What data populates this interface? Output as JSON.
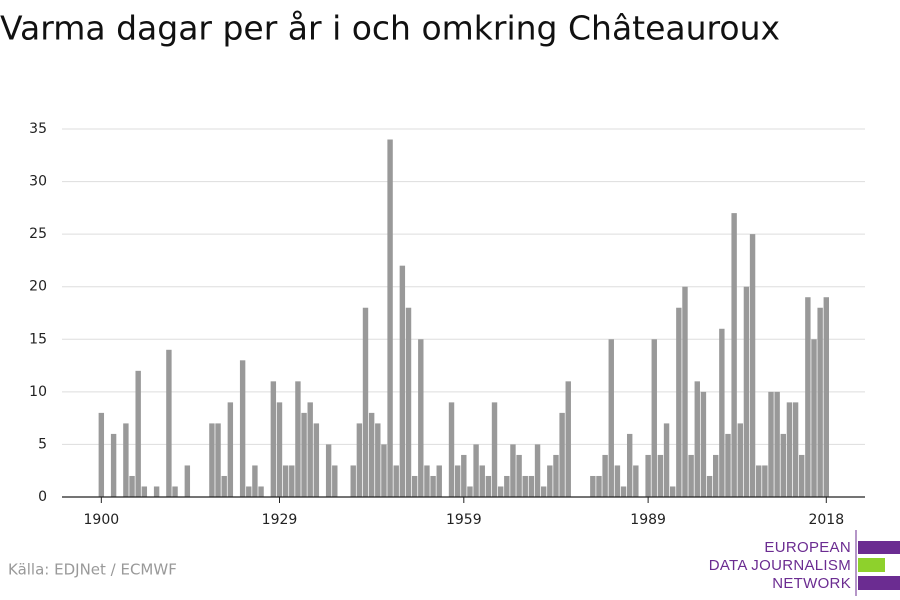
{
  "chart_data": {
    "type": "bar",
    "title": "Varma dagar per år i och omkring Châteauroux",
    "source": "Källa: EDJNet / ECMWF",
    "logo": [
      "EUROPEAN",
      "DATA JOURNALISM",
      "NETWORK"
    ],
    "color": "#999999",
    "x": [
      1900,
      1901,
      1902,
      1903,
      1904,
      1905,
      1906,
      1907,
      1908,
      1909,
      1910,
      1911,
      1912,
      1913,
      1914,
      1915,
      1916,
      1917,
      1918,
      1919,
      1920,
      1921,
      1922,
      1923,
      1924,
      1925,
      1926,
      1927,
      1928,
      1929,
      1930,
      1931,
      1932,
      1933,
      1934,
      1935,
      1936,
      1937,
      1938,
      1939,
      1940,
      1941,
      1942,
      1943,
      1944,
      1945,
      1946,
      1947,
      1948,
      1949,
      1950,
      1951,
      1952,
      1953,
      1954,
      1955,
      1956,
      1957,
      1958,
      1959,
      1960,
      1961,
      1962,
      1963,
      1964,
      1965,
      1966,
      1967,
      1968,
      1969,
      1970,
      1971,
      1972,
      1973,
      1974,
      1975,
      1976,
      1977,
      1978,
      1979,
      1980,
      1981,
      1982,
      1983,
      1984,
      1985,
      1986,
      1987,
      1988,
      1989,
      1990,
      1991,
      1992,
      1993,
      1994,
      1995,
      1996,
      1997,
      1998,
      1999,
      2000,
      2001,
      2002,
      2003,
      2004,
      2005,
      2006,
      2007,
      2008,
      2009,
      2010,
      2011,
      2012,
      2013,
      2014,
      2015,
      2016,
      2017,
      2018
    ],
    "values": [
      8,
      0,
      6,
      0,
      7,
      2,
      12,
      1,
      0,
      1,
      0,
      14,
      1,
      0,
      3,
      0,
      0,
      0,
      7,
      7,
      2,
      9,
      0,
      13,
      1,
      3,
      1,
      0,
      11,
      9,
      3,
      3,
      11,
      8,
      9,
      7,
      0,
      5,
      3,
      0,
      0,
      3,
      7,
      18,
      8,
      7,
      5,
      34,
      3,
      22,
      18,
      2,
      15,
      3,
      2,
      3,
      0,
      9,
      3,
      4,
      1,
      5,
      3,
      2,
      9,
      1,
      2,
      5,
      4,
      2,
      2,
      5,
      1,
      3,
      4,
      8,
      11,
      0,
      0,
      0,
      2,
      2,
      4,
      15,
      3,
      1,
      6,
      3,
      0,
      4,
      15,
      4,
      7,
      1,
      18,
      20,
      4,
      11,
      10,
      2,
      4,
      16,
      6,
      27,
      7,
      20,
      25,
      3,
      3,
      10,
      10,
      6,
      9,
      9,
      4,
      19,
      15,
      18,
      19
    ],
    "xlim": [
      1893.6,
      2024.3
    ],
    "xticks": [
      1900,
      1929,
      1959,
      1989,
      2018
    ],
    "ylim": [
      0,
      35
    ],
    "yticks": [
      0,
      5,
      10,
      15,
      20,
      25,
      30,
      35
    ],
    "grid": true
  }
}
